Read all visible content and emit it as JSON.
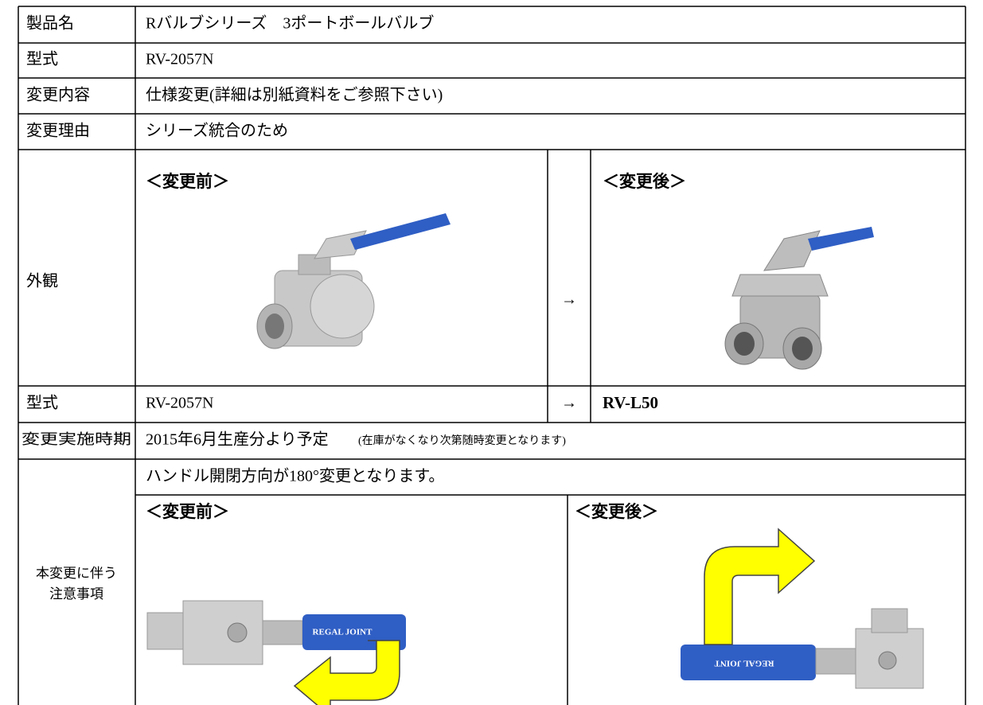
{
  "table": {
    "rows": [
      {
        "label": "製品名",
        "value": "Rバルブシリーズ　3ポートボールバルブ"
      },
      {
        "label": "型式",
        "value": "RV-2057N"
      },
      {
        "label": "変更内容",
        "value": "仕様変更(詳細は別紙資料をご参照下さい)"
      },
      {
        "label": "変更理由",
        "value": "シリーズ統合のため"
      }
    ],
    "appearance": {
      "label": "外観",
      "before": "＜変更前＞",
      "arrow": "→",
      "after": "＜変更後＞"
    },
    "model": {
      "label": "型式",
      "before": "RV-2057N",
      "arrow": "→",
      "after": "RV-L50"
    },
    "schedule": {
      "label": "変更実施時期",
      "value": "2015年6月生産分より予定",
      "note": "(在庫がなくなり次第随時変更となります)"
    },
    "caution": {
      "label": [
        "本変更に伴う",
        "注意事項"
      ],
      "text": "ハンドル開閉方向が180°変更となります。",
      "before": "＜変更前＞",
      "after": "＜変更後＞",
      "handle_text": "REGAL JOINT"
    }
  }
}
